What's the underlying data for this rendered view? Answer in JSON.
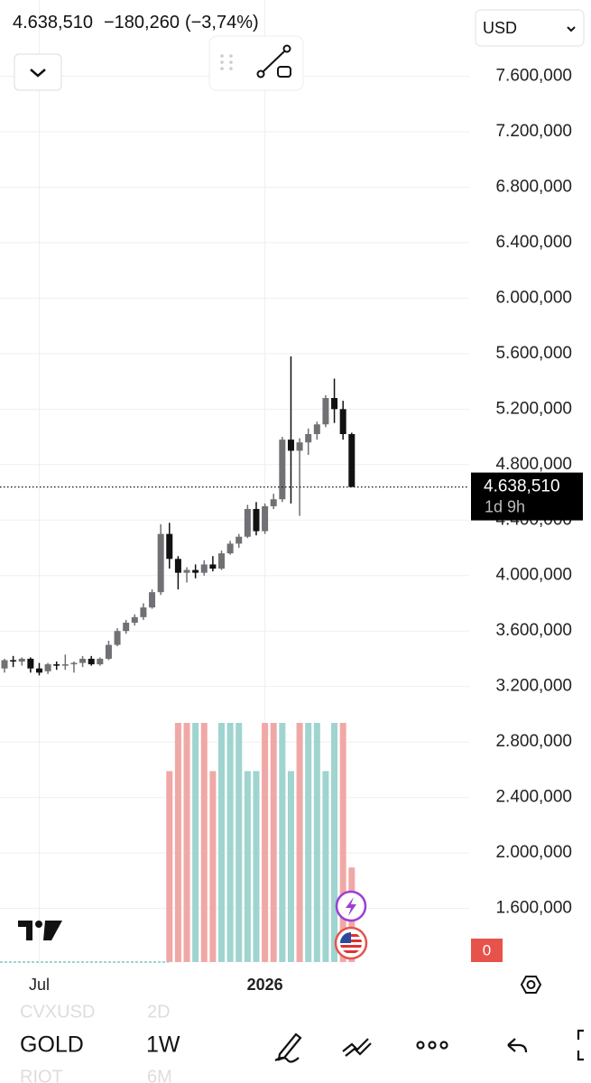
{
  "header": {
    "price": "4.638,510",
    "change": "−180,260",
    "change_pct": "(−3,74%)",
    "currency": "USD"
  },
  "chart_data": {
    "type": "candlestick",
    "categories": [
      null,
      null,
      null,
      null,
      "Jul",
      null,
      null,
      null,
      null,
      null,
      null,
      null,
      null,
      null,
      null,
      null,
      null,
      null,
      null,
      null,
      null,
      null,
      null,
      null,
      null,
      null,
      null,
      null,
      null,
      null,
      "2026",
      null,
      null,
      null,
      null,
      null,
      null,
      null,
      null,
      null,
      null
    ],
    "open": [
      3330000,
      3390000,
      3380000,
      3400000,
      3330000,
      3310000,
      3360000,
      3350000,
      3360000,
      3370000,
      3400000,
      3360000,
      3400000,
      3500000,
      3600000,
      3660000,
      3700000,
      3770000,
      3880000,
      4300000,
      4120000,
      4020000,
      4040000,
      4020000,
      4080000,
      4050000,
      4160000,
      4230000,
      4280000,
      4480000,
      4320000,
      4500000,
      4550000,
      4980000,
      4900000,
      4960000,
      5020000,
      5090000,
      5280000,
      5200000,
      5020000
    ],
    "high": [
      3400000,
      3420000,
      3410000,
      3410000,
      3370000,
      3370000,
      3380000,
      3430000,
      3380000,
      3420000,
      3420000,
      3410000,
      3530000,
      3620000,
      3680000,
      3720000,
      3800000,
      3900000,
      4370000,
      4380000,
      4140000,
      4060000,
      4080000,
      4110000,
      4140000,
      4180000,
      4250000,
      4300000,
      4510000,
      4530000,
      4520000,
      4590000,
      5000000,
      5580000,
      4990000,
      5060000,
      5110000,
      5300000,
      5420000,
      5260000,
      5030000
    ],
    "low": [
      3300000,
      3340000,
      3350000,
      3300000,
      3280000,
      3290000,
      3320000,
      3320000,
      3300000,
      3340000,
      3350000,
      3350000,
      3390000,
      3490000,
      3580000,
      3640000,
      3680000,
      3760000,
      3860000,
      4050000,
      3900000,
      3950000,
      3980000,
      4000000,
      4030000,
      4040000,
      4150000,
      4200000,
      4270000,
      4290000,
      4300000,
      4480000,
      4530000,
      4520000,
      4430000,
      4870000,
      4980000,
      5070000,
      5100000,
      4980000,
      4638510
    ],
    "close": [
      3390000,
      3380000,
      3400000,
      3330000,
      3300000,
      3360000,
      3350000,
      3360000,
      3370000,
      3400000,
      3360000,
      3400000,
      3500000,
      3600000,
      3660000,
      3700000,
      3770000,
      3880000,
      4300000,
      4120000,
      4020000,
      4040000,
      4020000,
      4080000,
      4050000,
      4160000,
      4230000,
      4280000,
      4480000,
      4320000,
      4500000,
      4550000,
      4980000,
      4900000,
      4960000,
      5020000,
      5090000,
      5280000,
      5200000,
      5020000,
      4638510
    ],
    "up_color": "#707075",
    "down_color": "#111111",
    "volume": [
      null,
      null,
      null,
      null,
      null,
      null,
      null,
      null,
      null,
      null,
      null,
      null,
      null,
      null,
      null,
      null,
      null,
      null,
      null,
      80,
      100,
      100,
      100,
      100,
      80,
      100,
      100,
      100,
      80,
      80,
      100,
      100,
      100,
      80,
      100,
      100,
      100,
      80,
      100,
      100,
      40
    ],
    "volume_colors": [
      null,
      null,
      null,
      null,
      null,
      null,
      null,
      null,
      null,
      null,
      null,
      null,
      null,
      null,
      null,
      null,
      null,
      null,
      null,
      "#f0a8a6",
      "#f0a8a6",
      "#f0a8a6",
      "#9fd4cf",
      "#f0a8a6",
      "#f0a8a6",
      "#9fd4cf",
      "#9fd4cf",
      "#9fd4cf",
      "#9fd4cf",
      "#9fd4cf",
      "#f0a8a6",
      "#f0a8a6",
      "#9fd4cf",
      "#9fd4cf",
      "#f0a8a6",
      "#9fd4cf",
      "#9fd4cf",
      "#9fd4cf",
      "#9fd4cf",
      "#f0a8a6",
      "#f0a8a6"
    ],
    "volume_lim": [
      0,
      400
    ],
    "ylim": [
      1200000,
      8150000
    ],
    "yticks": [
      {
        "value": 7600000,
        "label": "7.600,000"
      },
      {
        "value": 7200000,
        "label": "7.200,000"
      },
      {
        "value": 6800000,
        "label": "6.800,000"
      },
      {
        "value": 6400000,
        "label": "6.400,000"
      },
      {
        "value": 6000000,
        "label": "6.000,000"
      },
      {
        "value": 5600000,
        "label": "5.600,000"
      },
      {
        "value": 5200000,
        "label": "5.200,000"
      },
      {
        "value": 4800000,
        "label": "4.800,000"
      },
      {
        "value": 4400000,
        "label": "4.400,000"
      },
      {
        "value": 4000000,
        "label": "4.000,000"
      },
      {
        "value": 3600000,
        "label": "3.600,000"
      },
      {
        "value": 3200000,
        "label": "3.200,000"
      },
      {
        "value": 2800000,
        "label": "2.800,000"
      },
      {
        "value": 2400000,
        "label": "2.400,000"
      },
      {
        "value": 2000000,
        "label": "2.000,000"
      },
      {
        "value": 1600000,
        "label": "1.600,000"
      }
    ],
    "grid": true,
    "last_price": {
      "value": 4638510,
      "label": "4.638,510"
    },
    "countdown": "1d 9h",
    "indicator_value": "0"
  },
  "toolbar": {
    "symbol": "GOLD",
    "interval": "1W",
    "prev_symbol": "CVXUSD",
    "prev_interval": "2D",
    "next_symbol": "RIOT",
    "next_interval": "6M"
  }
}
